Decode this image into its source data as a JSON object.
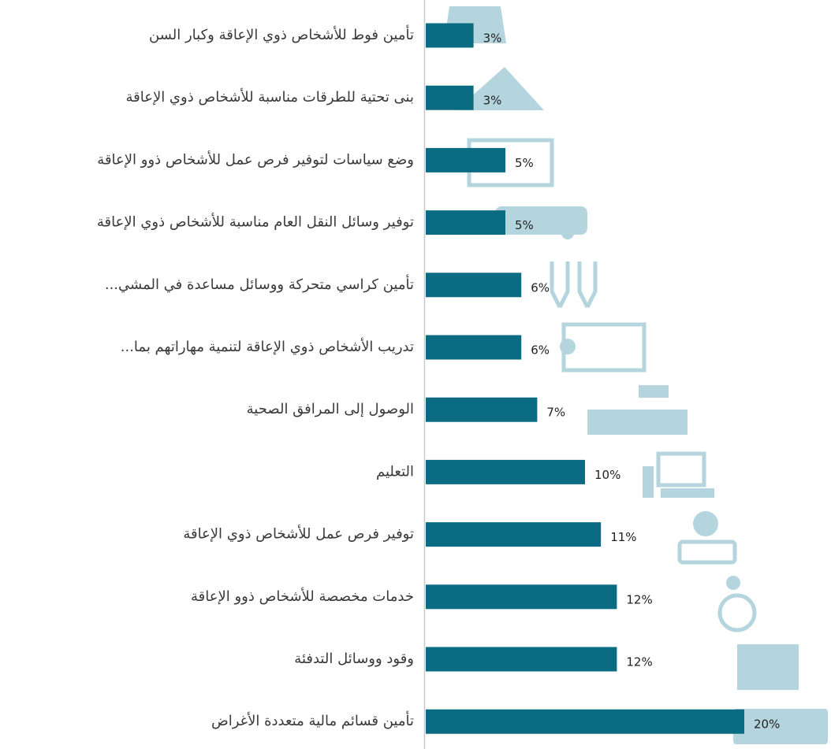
{
  "chart_data": {
    "type": "bar",
    "orientation": "horizontal",
    "color": "#0b6b82",
    "categories": [
      "تأمين فوط للأشخاص ذوي الإعاقة وكبار السن",
      "بنى تحتية للطرقات مناسبة للأشخاص ذوي الإعاقة",
      "وضع سياسات لتوفير فرص عمل للأشخاص ذوو الإعاقة",
      "توفير وسائل النقل العام مناسبة للأشخاص ذوي الإعاقة",
      "تأمين كراسي متحركة ووسائل مساعدة في المشي...",
      "تدريب الأشخاص ذوي الإعاقة لتنمية مهاراتهم بما...",
      "الوصول إلى المرافق الصحية",
      "التعليم",
      "توفير فرص عمل للأشخاص ذوي الإعاقة",
      "خدمات مخصصة للأشخاص ذوو الإعاقة",
      "وقود ووسائل التدفئة",
      "تأمين قسائم مالية متعددة الأغراض"
    ],
    "values": [
      3,
      3,
      5,
      5,
      6,
      6,
      7,
      10,
      11,
      12,
      12,
      20
    ],
    "value_labels": [
      "3%",
      "3%",
      "5%",
      "5%",
      "6%",
      "6%",
      "7%",
      "10%",
      "11%",
      "12%",
      "12%",
      "20%"
    ]
  }
}
